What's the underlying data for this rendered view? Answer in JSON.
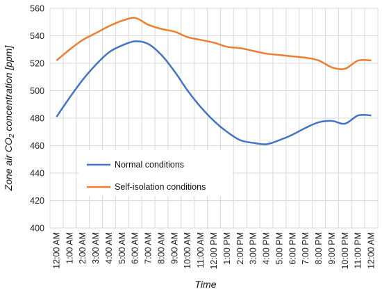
{
  "chart_data": {
    "type": "line",
    "xlabel": "Time",
    "ylabel_main": "Zone air CO",
    "ylabel_sub": "2",
    "ylabel_rest": " concentration [ppm]",
    "ylim": [
      400,
      560
    ],
    "yticks": [
      400,
      420,
      440,
      460,
      480,
      500,
      520,
      540,
      560
    ],
    "grid": "horizontal and vertical",
    "legend_position": "inside-left",
    "categories": [
      "12:00 AM",
      "1:00 AM",
      "2:00 AM",
      "3:00 AM",
      "4:00 AM",
      "5:00 AM",
      "6:00 AM",
      "7:00 AM",
      "8:00 AM",
      "9:00 AM",
      "10:00 AM",
      "11:00 AM",
      "12:00 PM",
      "1:00 PM",
      "2:00 PM",
      "3:00 PM",
      "4:00 PM",
      "5:00 PM",
      "6:00 PM",
      "7:00 PM",
      "8:00 PM",
      "9:00 PM",
      "10:00 PM",
      "11:00 PM",
      "12:00 AM"
    ],
    "series": [
      {
        "name": "Normal conditions",
        "color": "#4472C4",
        "values": [
          481,
          495,
          508,
          519,
          528,
          533,
          536,
          534,
          526,
          514,
          500,
          488,
          478,
          470,
          464,
          462,
          461,
          464,
          468,
          473,
          477,
          478,
          476,
          482,
          482
        ]
      },
      {
        "name": "Self-isolation conditions",
        "color": "#ED7D31",
        "values": [
          522,
          530,
          537,
          542,
          547,
          551,
          553,
          548,
          545,
          543,
          539,
          537,
          535,
          532,
          531,
          529,
          527,
          526,
          525,
          524,
          522,
          517,
          516,
          522,
          522
        ]
      }
    ]
  }
}
